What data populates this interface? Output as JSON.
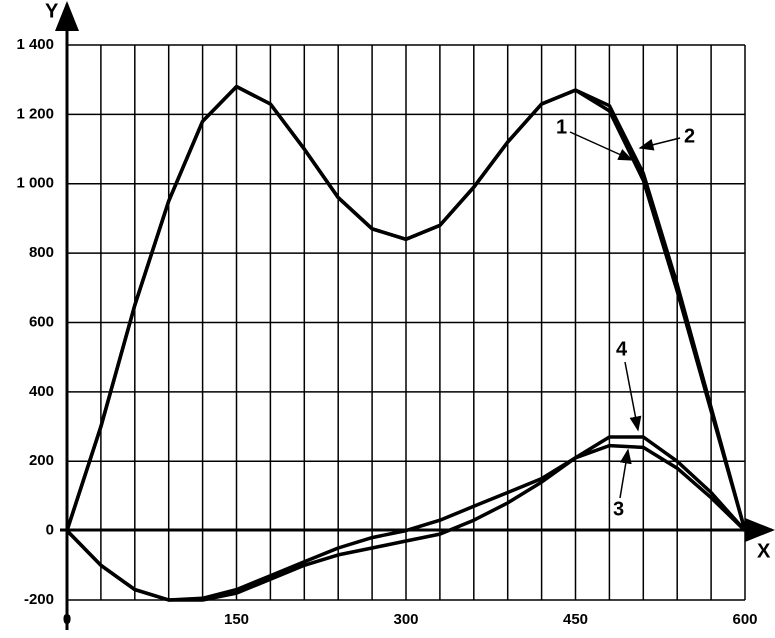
{
  "chart_data": {
    "type": "line",
    "xlabel": "X",
    "ylabel": "Y",
    "xlim": [
      0,
      600
    ],
    "ylim": [
      -200,
      1400
    ],
    "xticks": [
      0,
      150,
      300,
      450,
      600
    ],
    "xgrid": [
      0,
      30,
      60,
      90,
      120,
      150,
      180,
      210,
      240,
      270,
      300,
      330,
      360,
      390,
      420,
      450,
      480,
      510,
      540,
      570,
      600
    ],
    "yticks": [
      -200,
      0,
      200,
      400,
      600,
      800,
      {
        "value": 1000,
        "label": "1 000"
      },
      {
        "value": 1200,
        "label": "1 200"
      },
      {
        "value": 1400,
        "label": "1 400"
      }
    ],
    "grid": true,
    "x": [
      0,
      30,
      60,
      90,
      120,
      150,
      180,
      210,
      240,
      270,
      300,
      330,
      360,
      390,
      420,
      450,
      480,
      510,
      540,
      570,
      600
    ],
    "series": [
      {
        "name": "1",
        "color": "#000000",
        "values": [
          0,
          300,
          650,
          950,
          1180,
          1280,
          1230,
          1100,
          960,
          870,
          840,
          880,
          990,
          1120,
          1230,
          1270,
          1210,
          1010,
          690,
          345,
          0
        ]
      },
      {
        "name": "2",
        "color": "#000000",
        "values": [
          0,
          300,
          650,
          950,
          1180,
          1280,
          1230,
          1100,
          960,
          870,
          840,
          880,
          990,
          1120,
          1230,
          1270,
          1225,
          1030,
          710,
          355,
          0
        ]
      },
      {
        "name": "3",
        "color": "#000000",
        "values": [
          0,
          -100,
          -170,
          -200,
          -195,
          -170,
          -130,
          -90,
          -50,
          -20,
          0,
          30,
          70,
          110,
          150,
          210,
          245,
          240,
          180,
          95,
          0
        ]
      },
      {
        "name": "4",
        "color": "#000000",
        "values": [
          0,
          -100,
          -170,
          -200,
          -200,
          -180,
          -140,
          -100,
          -70,
          -50,
          -30,
          -10,
          30,
          80,
          140,
          210,
          270,
          270,
          200,
          110,
          0
        ]
      }
    ]
  }
}
